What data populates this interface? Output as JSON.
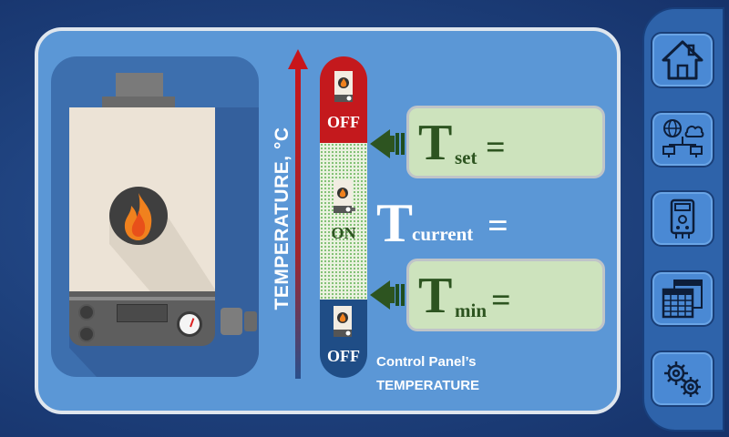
{
  "chart_axis": {
    "label": "TEMPERATURE, °C",
    "axis_color": "#b01e24"
  },
  "status_column": {
    "top_state": "OFF",
    "middle_state": "ON",
    "bottom_state": "OFF",
    "colors": {
      "top": "#c4191d",
      "middle": "#e9f1de",
      "bottom": "#1f4d86",
      "on_text": "#2d5420"
    }
  },
  "setpoints": {
    "set": {
      "symbol": "T",
      "subscript": "set",
      "equals": "=",
      "value": ""
    },
    "current": {
      "symbol": "T",
      "subscript": "current",
      "equals": "=",
      "value": ""
    },
    "min": {
      "symbol": "T",
      "subscript": "min",
      "equals": "=",
      "value": ""
    }
  },
  "caption": {
    "line1": "Control Panel’s",
    "line2": "TEMPERATURE"
  },
  "sidebar": {
    "items": [
      {
        "name": "home",
        "icon": "home-icon"
      },
      {
        "name": "network",
        "icon": "network-icon"
      },
      {
        "name": "boiler",
        "icon": "boiler-icon"
      },
      {
        "name": "schedule",
        "icon": "calendar-icon"
      },
      {
        "name": "settings",
        "icon": "gears-icon"
      }
    ]
  },
  "colors": {
    "background": "#1d3f7a",
    "panel": "#5b97d6",
    "input_box": "#cde3bd",
    "accent_green": "#2d5420",
    "sidebar": "#2e63aa",
    "button": "#4a89d4"
  }
}
